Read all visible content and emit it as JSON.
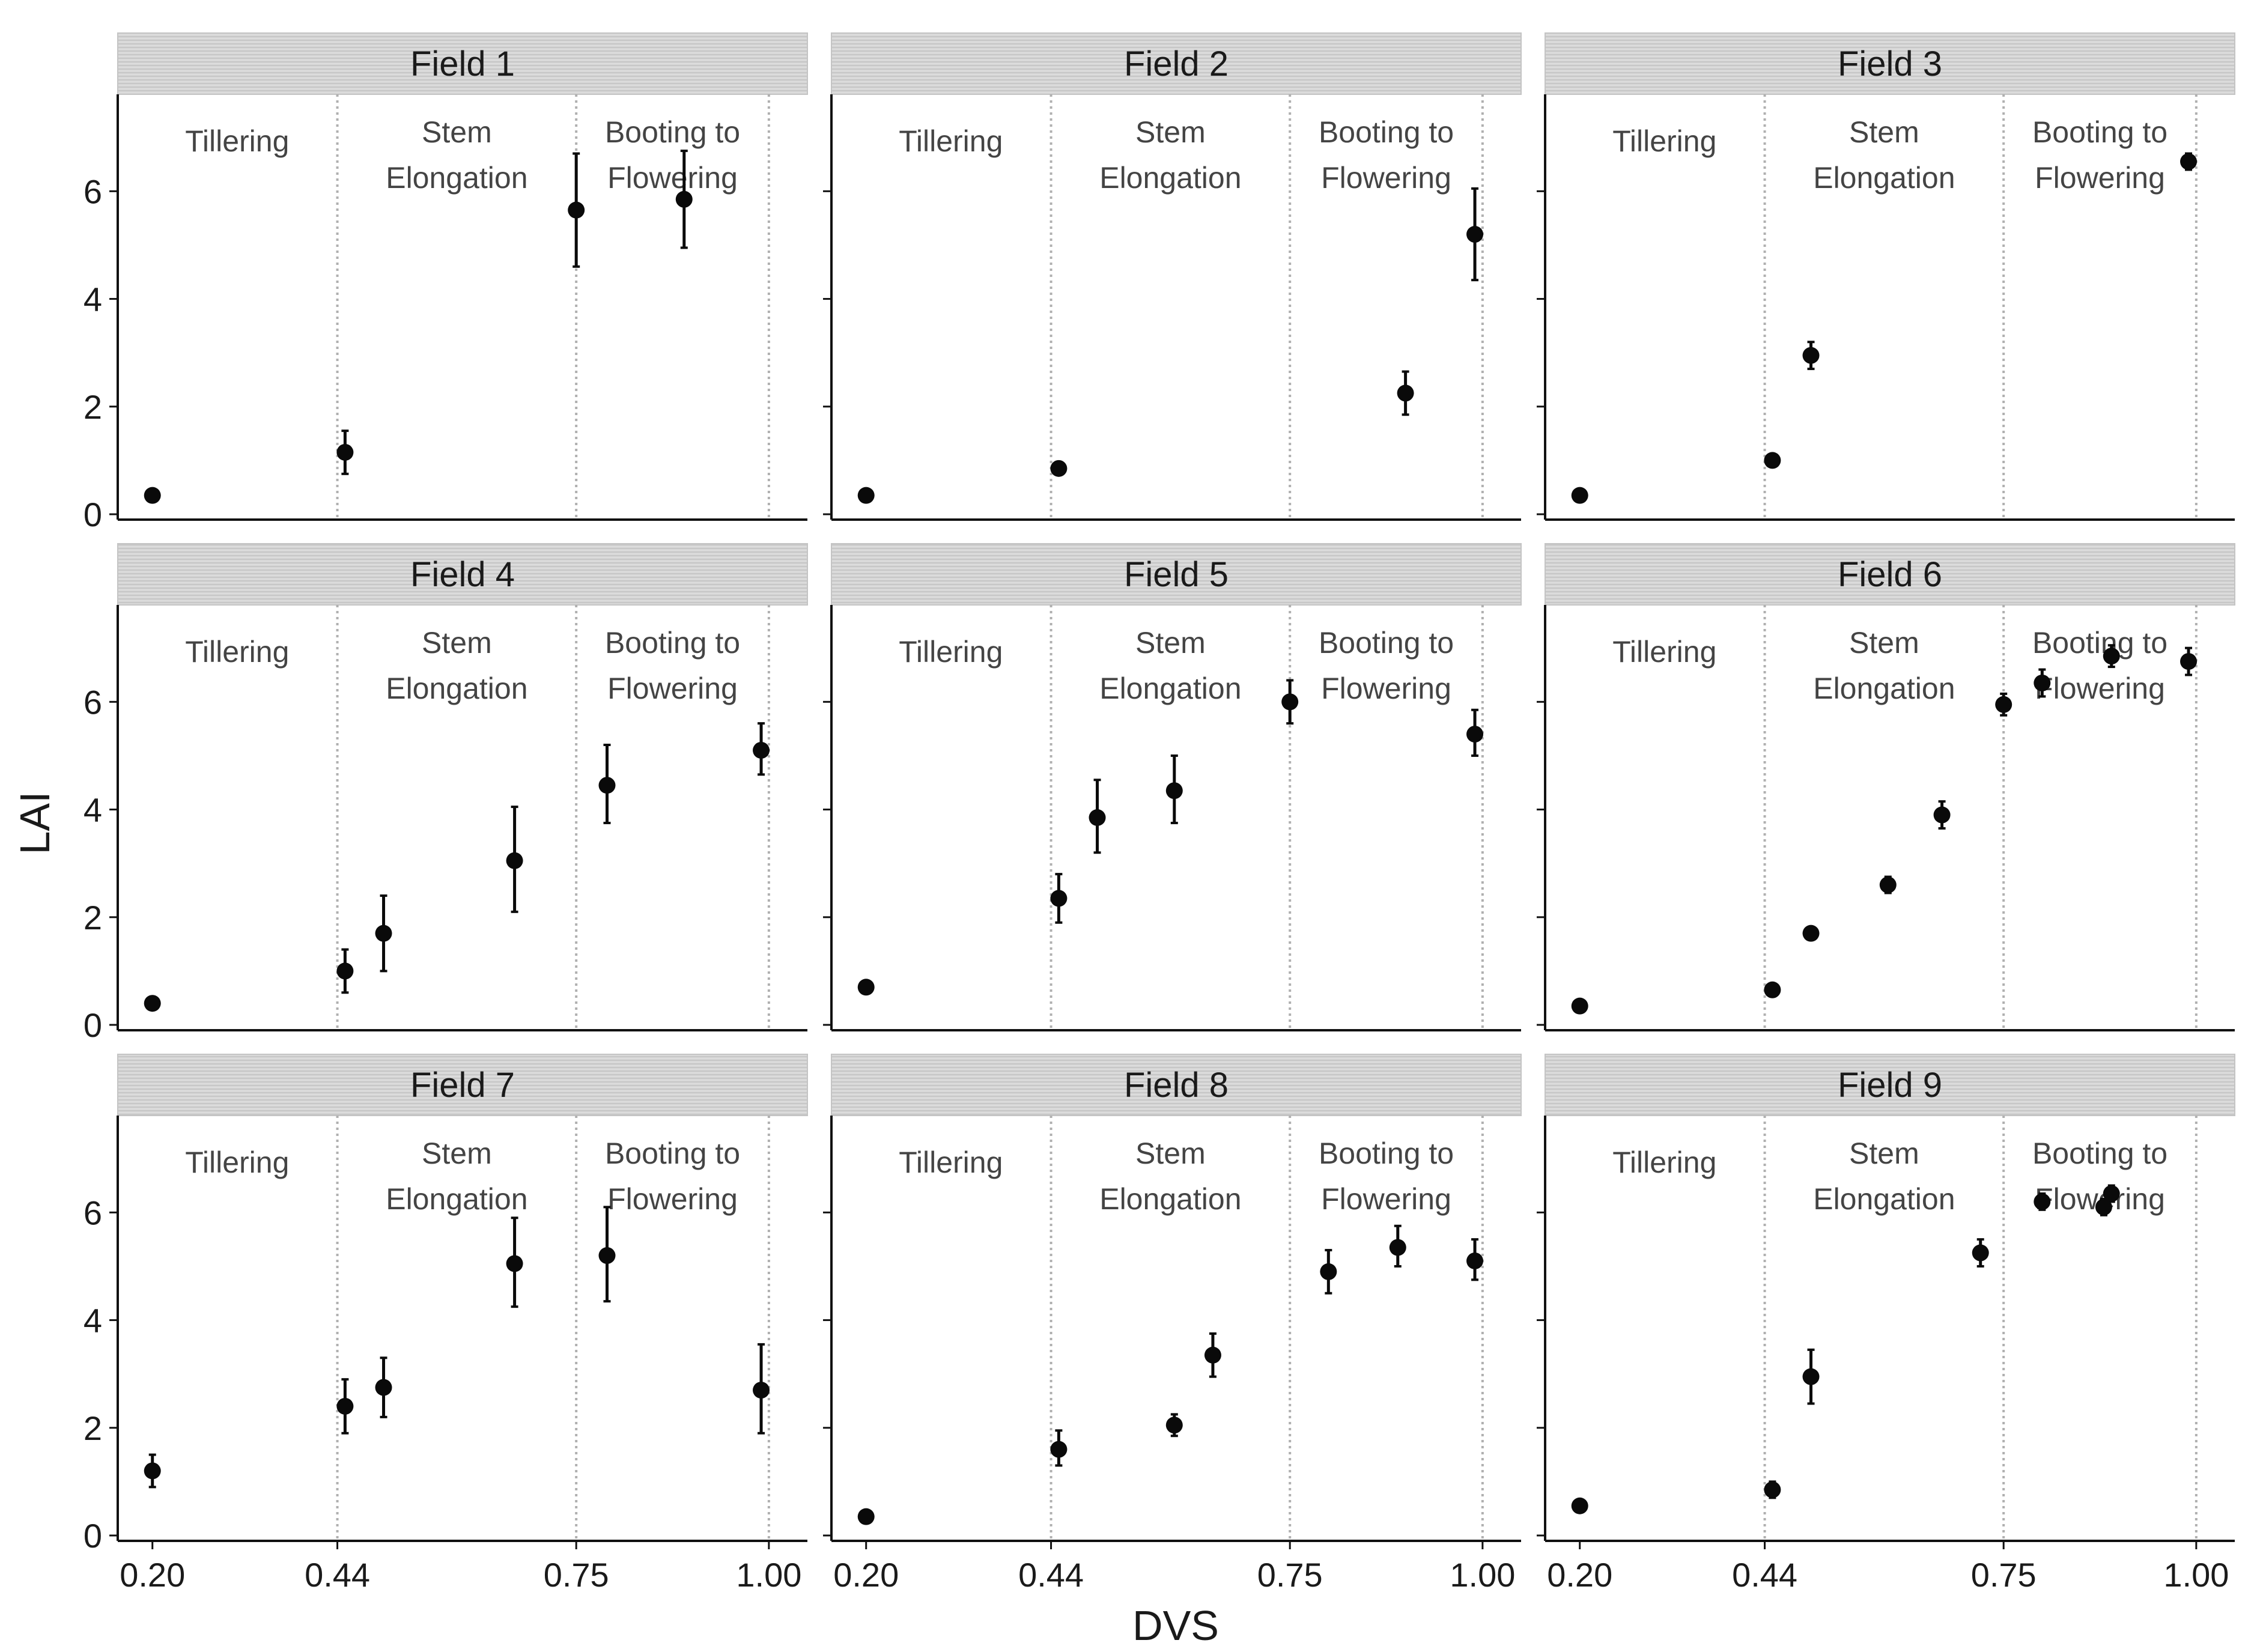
{
  "chart_data": {
    "type": "scatter",
    "xlabel": "DVS",
    "ylabel": "LAI",
    "xticks": [
      0.2,
      0.44,
      0.75,
      1.0
    ],
    "xtick_labels": [
      "0.20",
      "0.44",
      "0.75",
      "1.00"
    ],
    "xlim": [
      0.155,
      1.05
    ],
    "yticks": [
      0,
      2,
      4,
      6
    ],
    "ytick_labels": [
      "0",
      "2",
      "4",
      "6"
    ],
    "ylim": [
      -0.1,
      7.8
    ],
    "stage_boundaries": [
      0.44,
      0.75,
      1.0
    ],
    "stages": [
      {
        "lines": [
          "Tillering"
        ],
        "x": 0.31
      },
      {
        "lines": [
          "Stem",
          "Elongation"
        ],
        "x": 0.595
      },
      {
        "lines": [
          "Booting to",
          "Flowering"
        ],
        "x": 0.875
      }
    ],
    "error_bars": "mean ± error",
    "panels": [
      {
        "title": "Field 1",
        "points": [
          {
            "x": 0.2,
            "y": 0.35,
            "lo": 0.3,
            "hi": 0.4
          },
          {
            "x": 0.45,
            "y": 1.15,
            "lo": 0.75,
            "hi": 1.55
          },
          {
            "x": 0.75,
            "y": 5.65,
            "lo": 4.6,
            "hi": 6.7
          },
          {
            "x": 0.89,
            "y": 5.85,
            "lo": 4.95,
            "hi": 6.75
          }
        ]
      },
      {
        "title": "Field 2",
        "points": [
          {
            "x": 0.2,
            "y": 0.35,
            "lo": 0.3,
            "hi": 0.4
          },
          {
            "x": 0.45,
            "y": 0.85,
            "lo": 0.8,
            "hi": 0.9
          },
          {
            "x": 0.9,
            "y": 2.25,
            "lo": 1.85,
            "hi": 2.65
          },
          {
            "x": 0.99,
            "y": 5.2,
            "lo": 4.35,
            "hi": 6.05
          }
        ]
      },
      {
        "title": "Field 3",
        "points": [
          {
            "x": 0.2,
            "y": 0.35,
            "lo": 0.3,
            "hi": 0.4
          },
          {
            "x": 0.45,
            "y": 1.0,
            "lo": 0.95,
            "hi": 1.05
          },
          {
            "x": 0.5,
            "y": 2.95,
            "lo": 2.7,
            "hi": 3.2
          },
          {
            "x": 0.99,
            "y": 6.55,
            "lo": 6.4,
            "hi": 6.7
          }
        ]
      },
      {
        "title": "Field 4",
        "points": [
          {
            "x": 0.2,
            "y": 0.4,
            "lo": 0.35,
            "hi": 0.45
          },
          {
            "x": 0.45,
            "y": 1.0,
            "lo": 0.6,
            "hi": 1.4
          },
          {
            "x": 0.5,
            "y": 1.7,
            "lo": 1.0,
            "hi": 2.4
          },
          {
            "x": 0.67,
            "y": 3.05,
            "lo": 2.1,
            "hi": 4.05
          },
          {
            "x": 0.79,
            "y": 4.45,
            "lo": 3.75,
            "hi": 5.2
          },
          {
            "x": 0.99,
            "y": 5.1,
            "lo": 4.65,
            "hi": 5.6
          }
        ]
      },
      {
        "title": "Field 5",
        "points": [
          {
            "x": 0.2,
            "y": 0.7,
            "lo": 0.65,
            "hi": 0.75
          },
          {
            "x": 0.45,
            "y": 2.35,
            "lo": 1.9,
            "hi": 2.8
          },
          {
            "x": 0.5,
            "y": 3.85,
            "lo": 3.2,
            "hi": 4.55
          },
          {
            "x": 0.6,
            "y": 4.35,
            "lo": 3.75,
            "hi": 5.0
          },
          {
            "x": 0.75,
            "y": 6.0,
            "lo": 5.6,
            "hi": 6.4
          },
          {
            "x": 0.99,
            "y": 5.4,
            "lo": 5.0,
            "hi": 5.85
          }
        ]
      },
      {
        "title": "Field 6",
        "points": [
          {
            "x": 0.2,
            "y": 0.35,
            "lo": 0.3,
            "hi": 0.4
          },
          {
            "x": 0.45,
            "y": 0.65,
            "lo": 0.6,
            "hi": 0.7
          },
          {
            "x": 0.5,
            "y": 1.7,
            "lo": 1.65,
            "hi": 1.75
          },
          {
            "x": 0.6,
            "y": 2.6,
            "lo": 2.45,
            "hi": 2.75
          },
          {
            "x": 0.67,
            "y": 3.9,
            "lo": 3.65,
            "hi": 4.15
          },
          {
            "x": 0.75,
            "y": 5.95,
            "lo": 5.75,
            "hi": 6.15
          },
          {
            "x": 0.8,
            "y": 6.35,
            "lo": 6.1,
            "hi": 6.6
          },
          {
            "x": 0.89,
            "y": 6.85,
            "lo": 6.65,
            "hi": 7.05
          },
          {
            "x": 0.99,
            "y": 6.75,
            "lo": 6.5,
            "hi": 7.0
          }
        ]
      },
      {
        "title": "Field 7",
        "points": [
          {
            "x": 0.2,
            "y": 1.2,
            "lo": 0.9,
            "hi": 1.5
          },
          {
            "x": 0.45,
            "y": 2.4,
            "lo": 1.9,
            "hi": 2.9
          },
          {
            "x": 0.5,
            "y": 2.75,
            "lo": 2.2,
            "hi": 3.3
          },
          {
            "x": 0.67,
            "y": 5.05,
            "lo": 4.25,
            "hi": 5.9
          },
          {
            "x": 0.79,
            "y": 5.2,
            "lo": 4.35,
            "hi": 6.1
          },
          {
            "x": 0.99,
            "y": 2.7,
            "lo": 1.9,
            "hi": 3.55
          }
        ]
      },
      {
        "title": "Field 8",
        "points": [
          {
            "x": 0.2,
            "y": 0.35,
            "lo": 0.3,
            "hi": 0.4
          },
          {
            "x": 0.45,
            "y": 1.6,
            "lo": 1.3,
            "hi": 1.95
          },
          {
            "x": 0.6,
            "y": 2.05,
            "lo": 1.85,
            "hi": 2.25
          },
          {
            "x": 0.65,
            "y": 3.35,
            "lo": 2.95,
            "hi": 3.75
          },
          {
            "x": 0.8,
            "y": 4.9,
            "lo": 4.5,
            "hi": 5.3
          },
          {
            "x": 0.89,
            "y": 5.35,
            "lo": 5.0,
            "hi": 5.75
          },
          {
            "x": 0.99,
            "y": 5.1,
            "lo": 4.75,
            "hi": 5.5
          }
        ]
      },
      {
        "title": "Field 9",
        "points": [
          {
            "x": 0.2,
            "y": 0.55,
            "lo": 0.5,
            "hi": 0.6
          },
          {
            "x": 0.45,
            "y": 0.85,
            "lo": 0.7,
            "hi": 1.0
          },
          {
            "x": 0.5,
            "y": 2.95,
            "lo": 2.45,
            "hi": 3.45
          },
          {
            "x": 0.72,
            "y": 5.25,
            "lo": 5.0,
            "hi": 5.5
          },
          {
            "x": 0.8,
            "y": 6.2,
            "lo": 6.05,
            "hi": 6.35
          },
          {
            "x": 0.88,
            "y": 6.1,
            "lo": 5.95,
            "hi": 6.25
          },
          {
            "x": 0.89,
            "y": 6.35,
            "lo": 6.2,
            "hi": 6.5
          }
        ]
      }
    ]
  },
  "colors": {
    "point": "#0a0a0a",
    "strip_fill": "#d4d4d4",
    "strip_border": "#c4c4c4",
    "axis": "#111111",
    "stage_line": "#b0b0b0",
    "stage_text": "#444444"
  }
}
